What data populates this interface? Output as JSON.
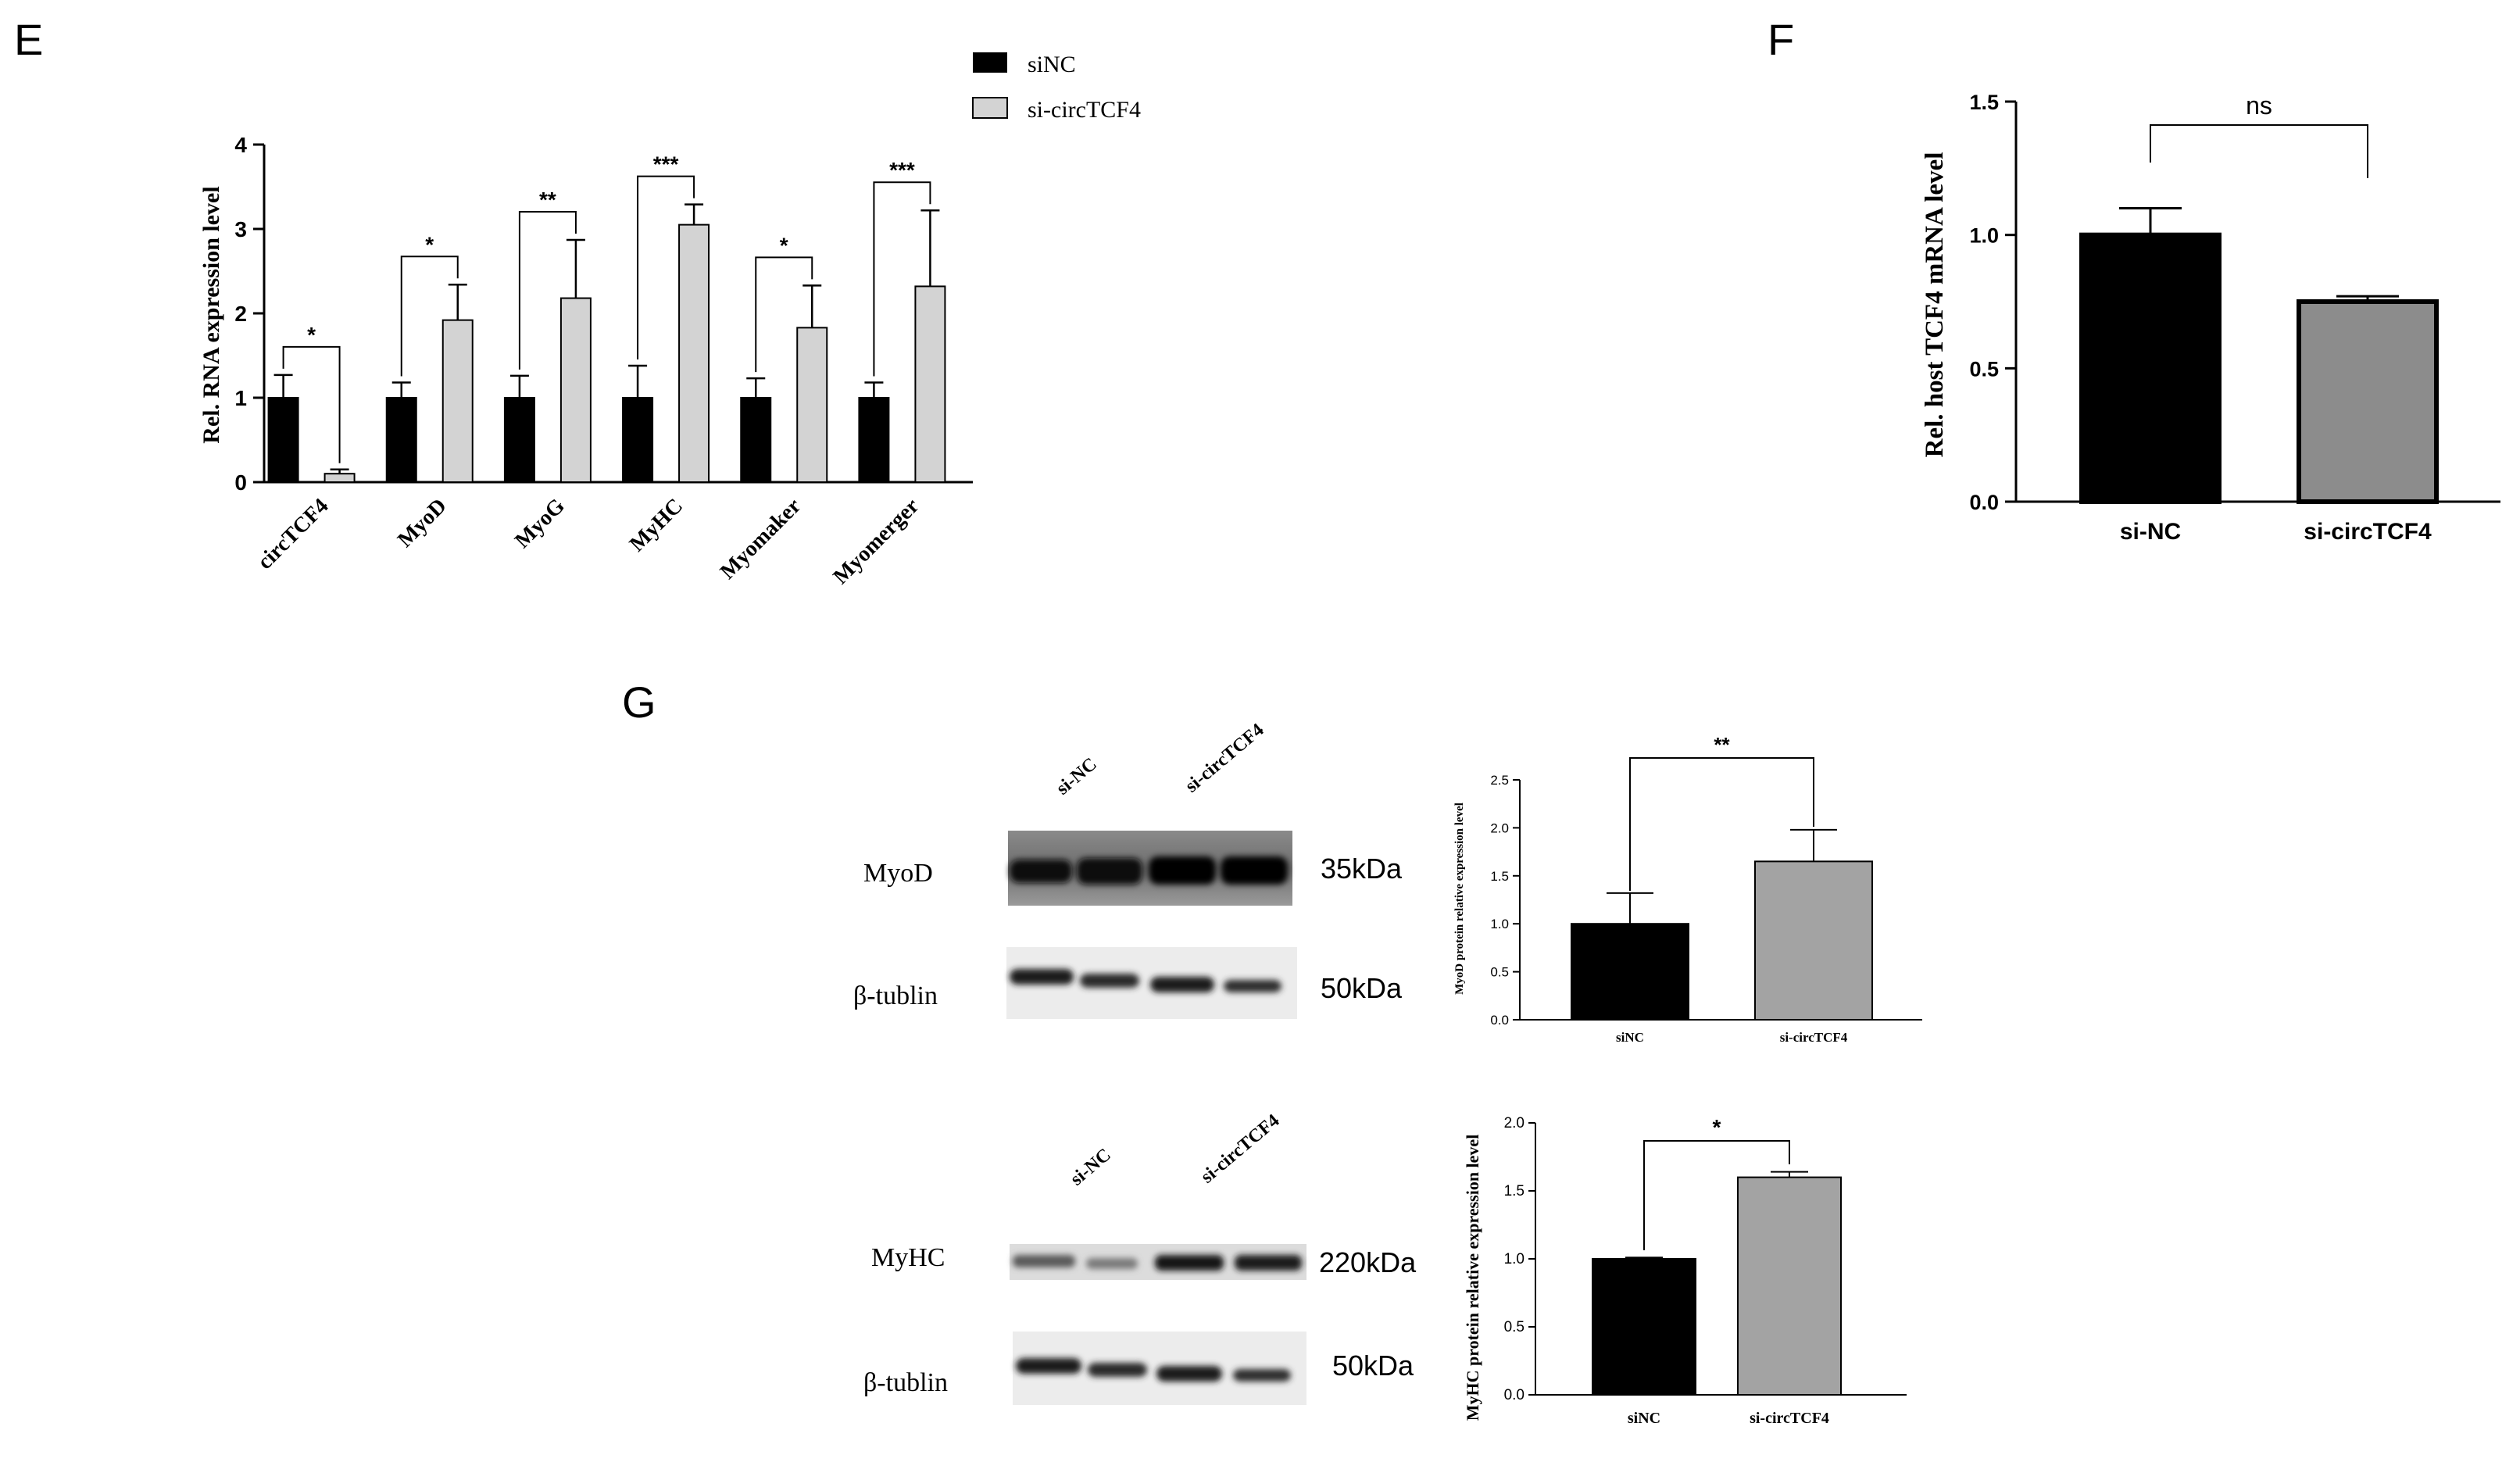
{
  "panels": {
    "E": {
      "letter": "E",
      "chart_data": {
        "type": "bar",
        "title": "",
        "xlabel": "",
        "ylabel": "Rel. RNA expression level",
        "ylim": [
          0,
          4
        ],
        "yticks": [
          0,
          1,
          2,
          3,
          4
        ],
        "categories": [
          "circTCF4",
          "MyoD",
          "MyoG",
          "MyHC",
          "Myomaker",
          "Myomerger"
        ],
        "series": [
          {
            "name": "siNC",
            "color": "#000000",
            "values": [
              1.0,
              1.0,
              1.0,
              1.0,
              1.0,
              1.0
            ],
            "errors": [
              0.27,
              0.18,
              0.26,
              0.38,
              0.23,
              0.18
            ]
          },
          {
            "name": "si-circTCF4",
            "color": "#d3d3d3",
            "values": [
              0.1,
              1.92,
              2.18,
              3.05,
              1.83,
              2.32
            ],
            "errors": [
              0.05,
              0.42,
              0.69,
              0.24,
              0.5,
              0.9
            ]
          }
        ],
        "significance": [
          "*",
          "*",
          "**",
          "***",
          "*",
          "***"
        ],
        "legend": "top-right",
        "grid": false
      }
    },
    "F": {
      "letter": "F",
      "chart_data": {
        "type": "bar",
        "title": "",
        "xlabel": "",
        "ylabel": "Rel. host TCF4 mRNA level",
        "ylim": [
          0,
          1.5
        ],
        "yticks": [
          "0.0",
          "0.5",
          "1.0",
          "1.5"
        ],
        "categories": [
          "si-NC",
          "si-circTCF4"
        ],
        "values": [
          1.0,
          0.75
        ],
        "errors": [
          0.1,
          0.02
        ],
        "colors": [
          "#000000",
          "#8c8c8c"
        ],
        "significance": "ns",
        "grid": false
      }
    },
    "G": {
      "letter": "G",
      "blots": [
        {
          "lane_labels": [
            "si-NC",
            "si-circTCF4"
          ],
          "rows": [
            {
              "protein": "MyoD",
              "size": "35kDa"
            },
            {
              "protein": "β-tublin",
              "size": "50kDa"
            }
          ]
        },
        {
          "lane_labels": [
            "si-NC",
            "si-circTCF4"
          ],
          "rows": [
            {
              "protein": "MyHC",
              "size": "220kDa"
            },
            {
              "protein": "β-tublin",
              "size": "50kDa"
            }
          ]
        }
      ],
      "charts": [
        {
          "type": "bar",
          "ylabel": "MyoD protein relative expression level",
          "ylim": [
            0,
            2.5
          ],
          "yticks": [
            "0.0",
            "0.5",
            "1.0",
            "1.5",
            "2.0",
            "2.5"
          ],
          "categories": [
            "siNC",
            "si-circTCF4"
          ],
          "values": [
            1.0,
            1.65
          ],
          "errors": [
            0.32,
            0.33
          ],
          "colors": [
            "#000000",
            "#a3a3a3"
          ],
          "significance": "**"
        },
        {
          "type": "bar",
          "ylabel": "MyHC protein relative expression level",
          "ylim": [
            0,
            2.0
          ],
          "yticks": [
            "0.0",
            "0.5",
            "1.0",
            "1.5",
            "2.0"
          ],
          "categories": [
            "siNC",
            "si-circTCF4"
          ],
          "values": [
            1.0,
            1.6
          ],
          "errors": [
            0.01,
            0.04
          ],
          "colors": [
            "#000000",
            "#a3a3a3"
          ],
          "significance": "*"
        }
      ]
    }
  }
}
